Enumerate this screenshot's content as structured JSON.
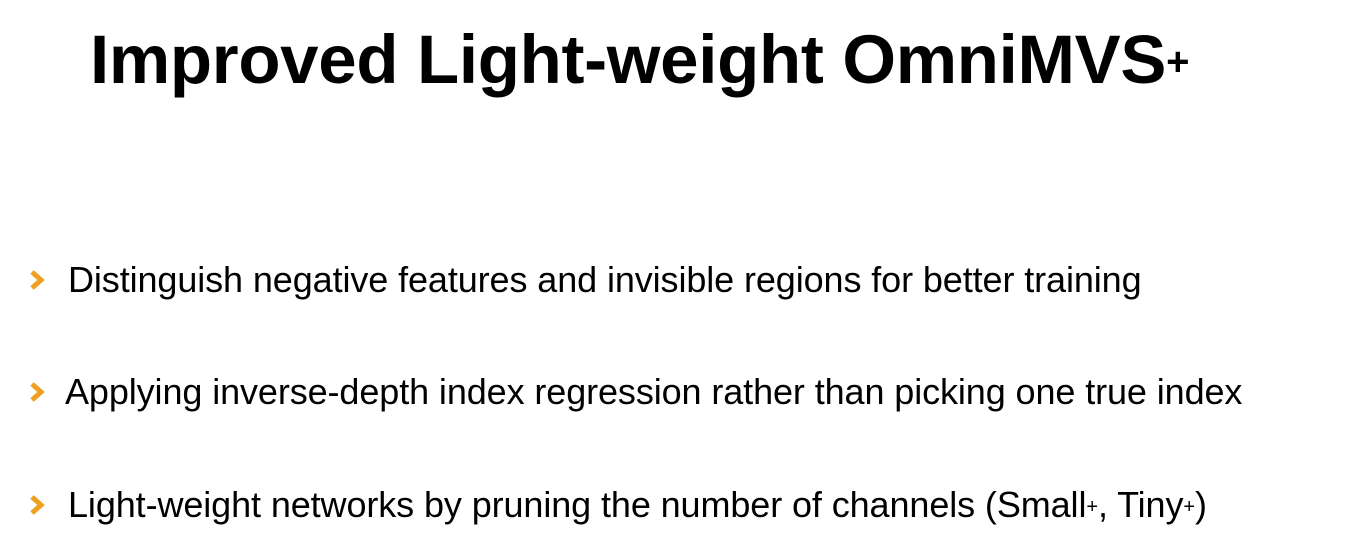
{
  "slide": {
    "title": "Improved Light-weight OmniMVS",
    "title_superscript": "+"
  },
  "bullets": [
    {
      "icon": "chevron-right-icon",
      "text": "Distinguish negative features and invisible regions for better training"
    },
    {
      "icon": "chevron-right-icon",
      "text": "Applying inverse-depth index regression rather than picking one true index"
    },
    {
      "icon": "chevron-right-icon",
      "text_part1": "Light-weight networks by pruning the number of channels (Small",
      "sup1": "+",
      "text_part2": ", Tiny",
      "sup2": "+",
      "text_part3": ")"
    }
  ],
  "colors": {
    "bullet_accent": "#F0A020",
    "text": "#000000",
    "background": "#FFFFFF"
  }
}
